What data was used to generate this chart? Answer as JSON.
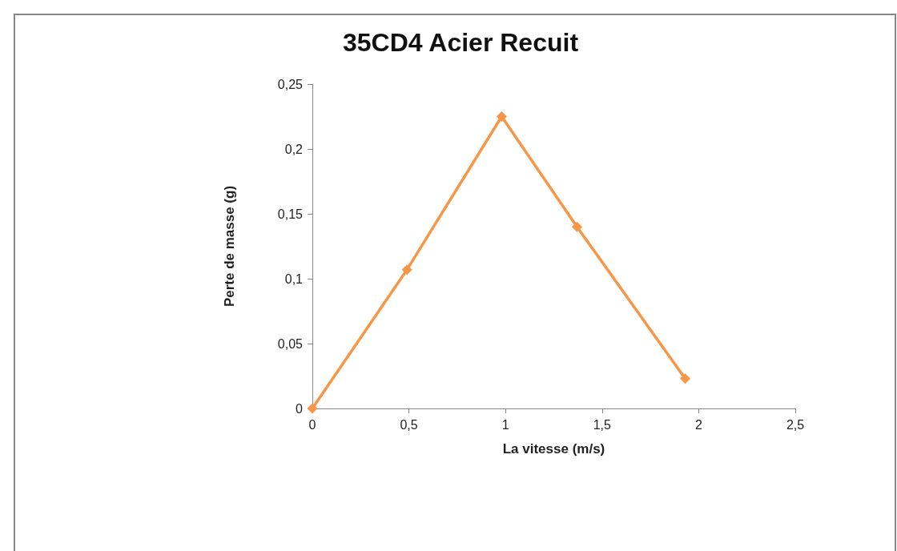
{
  "chart_data": {
    "type": "line",
    "title": "35CD4 Acier Recuit",
    "xlabel": "La vitesse (m/s)",
    "ylabel": "Perte de masse (g)",
    "x": [
      0,
      0.49,
      0.98,
      1.37,
      1.93
    ],
    "series": [
      {
        "color": "#f79646",
        "values": [
          0,
          0.107,
          0.225,
          0.14,
          0.023
        ]
      }
    ],
    "xlim": [
      0,
      2.5
    ],
    "xticks": [
      0,
      {
        "value": 0.5,
        "label": "0,5"
      },
      1,
      {
        "value": 1.5,
        "label": "1,5"
      },
      2,
      {
        "value": 2.5,
        "label": "2,5"
      }
    ],
    "ylim": [
      0,
      0.25
    ],
    "yticks": [
      0,
      {
        "value": 0.05,
        "label": "0,05"
      },
      {
        "value": 0.1,
        "label": "0,1"
      },
      {
        "value": 0.15,
        "label": "0,15"
      },
      {
        "value": 0.2,
        "label": "0,2"
      },
      {
        "value": 0.25,
        "label": "0,25"
      }
    ],
    "marker": "diamond",
    "line_style": "solid"
  }
}
